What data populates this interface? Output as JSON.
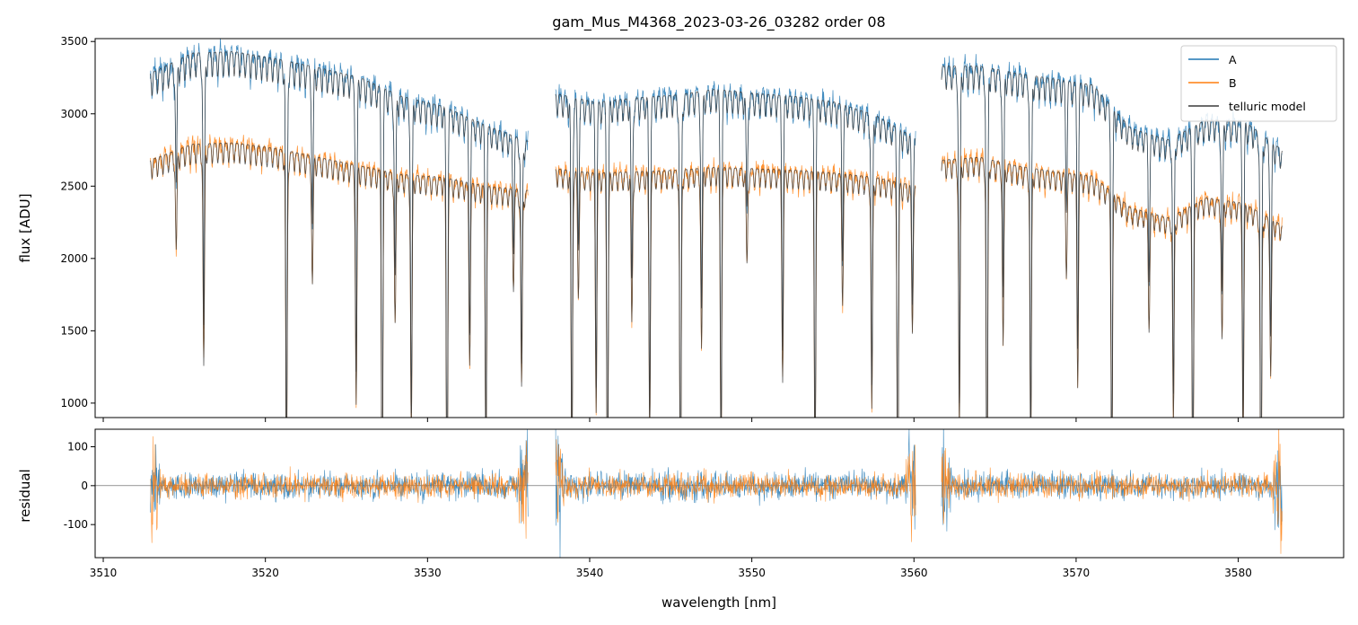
{
  "chart_data": {
    "type": "line",
    "title": "gam_Mus_M4368_2023-03-26_03282  order 08",
    "xlabel": "wavelength [nm]",
    "xlim": [
      3509.5,
      3586.5
    ],
    "x_ticks": [
      3510,
      3520,
      3530,
      3540,
      3550,
      3560,
      3570,
      3580
    ],
    "colors": {
      "A": "#1f77b4",
      "B": "#ff7f0e",
      "telluric": "#3a3a3a"
    },
    "panels": [
      {
        "name": "spectrum",
        "ylabel": "flux [ADU]",
        "ylim": [
          900,
          3520
        ],
        "y_ticks": [
          1000,
          1500,
          2000,
          2500,
          3000,
          3500
        ],
        "segments": [
          {
            "x": [
              3512.9,
              3536.2
            ],
            "A_level": [
              3280,
              3420,
              3430,
              3380,
              3320,
              3250,
              3120,
              3050,
              2920,
              2810
            ],
            "B_level": [
              2680,
              2790,
              2800,
              2760,
              2700,
              2640,
              2580,
              2560,
              2500,
              2470
            ]
          },
          {
            "x": [
              3537.9,
              3560.1
            ],
            "A_level": [
              3140,
              3080,
              3110,
              3130,
              3170,
              3140,
              3120,
              3080,
              2990,
              2830
            ],
            "B_level": [
              2620,
              2590,
              2600,
              2610,
              2630,
              2620,
              2610,
              2590,
              2560,
              2500
            ]
          },
          {
            "x": [
              3561.7,
              3582.7
            ],
            "A_level": [
              3330,
              3330,
              3280,
              3240,
              3200,
              2900,
              2820,
              2960,
              2950,
              2750
            ],
            "B_level": [
              2680,
              2700,
              2640,
              2600,
              2570,
              2350,
              2280,
              2420,
              2380,
              2230
            ]
          }
        ],
        "absorption_lines_nm": [
          3514.5,
          3516.2,
          3521.3,
          3522.9,
          3525.6,
          3527.2,
          3528.0,
          3529.0,
          3531.2,
          3532.6,
          3533.6,
          3535.3,
          3535.8,
          3538.9,
          3539.3,
          3540.4,
          3541.1,
          3542.6,
          3543.7,
          3545.6,
          3546.9,
          3548.1,
          3549.7,
          3551.9,
          3553.9,
          3555.6,
          3557.4,
          3559.0,
          3559.9,
          3562.8,
          3564.5,
          3565.5,
          3567.2,
          3569.4,
          3570.1,
          3572.2,
          3574.5,
          3576.0,
          3577.2,
          3579.0,
          3580.3,
          3581.4,
          3582.0
        ]
      },
      {
        "name": "residual",
        "ylabel": "residual",
        "ylim": [
          -185,
          145
        ],
        "y_ticks": [
          -100,
          0,
          100
        ]
      }
    ],
    "series": [
      {
        "name": "A"
      },
      {
        "name": "B"
      },
      {
        "name": "telluric model"
      }
    ],
    "legend": "top-right"
  }
}
